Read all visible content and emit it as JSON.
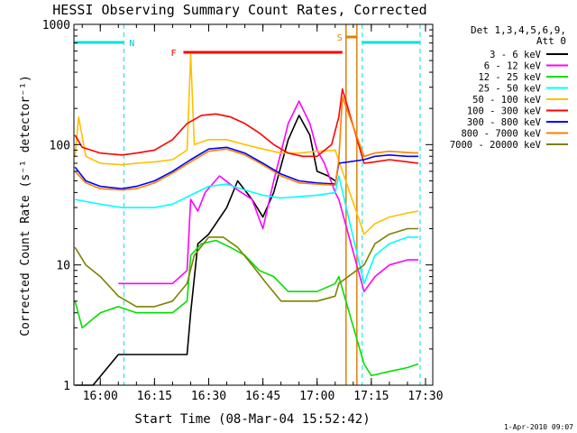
{
  "chart_data": {
    "type": "line",
    "title": "HESSI Observing Summary Count Rates, Corrected",
    "xlabel": "Start Time (08-Mar-04 15:52:42)",
    "ylabel": "Corrected Count Rate (s⁻¹ detector⁻¹)",
    "x_range": [
      "15:52:42",
      "17:32:00"
    ],
    "ylim": [
      1,
      1000
    ],
    "yscale": "log",
    "x_ticks": [
      "16:00",
      "16:15",
      "16:30",
      "16:45",
      "17:00",
      "17:15",
      "17:30"
    ],
    "y_ticks": [
      "1",
      "10",
      "100",
      "1000"
    ],
    "legend_header": [
      "Det 1,3,4,5,6,9,",
      "Att 0"
    ],
    "legend_position": "right",
    "footer": "1-Apr-2010 09:07",
    "annotations": {
      "night_label": "N",
      "flare_label": "F",
      "saa_label": "S",
      "night_intervals": [
        [
          "15:52:42",
          "16:06:30"
        ],
        [
          "17:12:30",
          "17:28:30"
        ]
      ],
      "flare_interval": [
        "16:23:00",
        "17:07:00"
      ],
      "saa_interval": [
        "17:08:00",
        "17:11:00"
      ]
    },
    "series": [
      {
        "name": "3 - 6 keV",
        "color": "#000000",
        "points": [
          [
            "15:53",
            1
          ],
          [
            "15:58",
            1
          ],
          [
            "16:05",
            1.8
          ],
          [
            "16:20",
            1.8
          ],
          [
            "16:24",
            1.8
          ],
          [
            "16:25",
            4
          ],
          [
            "16:27",
            15
          ],
          [
            "16:30",
            18
          ],
          [
            "16:35",
            30
          ],
          [
            "16:38",
            50
          ],
          [
            "16:42",
            35
          ],
          [
            "16:45",
            25
          ],
          [
            "16:48",
            40
          ],
          [
            "16:52",
            110
          ],
          [
            "16:55",
            175
          ],
          [
            "16:58",
            120
          ],
          [
            "17:00",
            60
          ],
          [
            "17:03",
            55
          ],
          [
            "17:05",
            50
          ]
        ]
      },
      {
        "name": "6 - 12 keV",
        "color": "#ff00ff",
        "points": [
          [
            "16:05",
            7
          ],
          [
            "16:10",
            7
          ],
          [
            "16:20",
            7
          ],
          [
            "16:24",
            9
          ],
          [
            "16:25",
            35
          ],
          [
            "16:27",
            28
          ],
          [
            "16:29",
            40
          ],
          [
            "16:33",
            55
          ],
          [
            "16:38",
            42
          ],
          [
            "16:42",
            35
          ],
          [
            "16:45",
            20
          ],
          [
            "16:48",
            50
          ],
          [
            "16:52",
            150
          ],
          [
            "16:55",
            230
          ],
          [
            "16:58",
            150
          ],
          [
            "17:00",
            90
          ],
          [
            "17:02",
            70
          ],
          [
            "17:05",
            40
          ],
          [
            "17:06",
            35
          ],
          [
            "17:13",
            6
          ],
          [
            "17:16",
            8
          ],
          [
            "17:20",
            10
          ],
          [
            "17:25",
            11
          ],
          [
            "17:28",
            11
          ]
        ]
      },
      {
        "name": "12 - 25 keV",
        "color": "#00e000",
        "points": [
          [
            "15:53",
            5
          ],
          [
            "15:55",
            3
          ],
          [
            "16:00",
            4
          ],
          [
            "16:05",
            4.5
          ],
          [
            "16:10",
            4
          ],
          [
            "16:15",
            4
          ],
          [
            "16:20",
            4
          ],
          [
            "16:24",
            5
          ],
          [
            "16:25",
            12
          ],
          [
            "16:28",
            15
          ],
          [
            "16:32",
            16
          ],
          [
            "16:36",
            14
          ],
          [
            "16:40",
            12
          ],
          [
            "16:44",
            9
          ],
          [
            "16:48",
            8
          ],
          [
            "16:52",
            6
          ],
          [
            "16:56",
            6
          ],
          [
            "17:00",
            6
          ],
          [
            "17:05",
            7
          ],
          [
            "17:06",
            8
          ],
          [
            "17:13",
            1.5
          ],
          [
            "17:15",
            1.2
          ],
          [
            "17:20",
            1.3
          ],
          [
            "17:25",
            1.4
          ],
          [
            "17:28",
            1.5
          ]
        ]
      },
      {
        "name": "25 - 50 keV",
        "color": "#00ffff",
        "points": [
          [
            "15:53",
            35
          ],
          [
            "16:00",
            32
          ],
          [
            "16:06",
            30
          ],
          [
            "16:10",
            30
          ],
          [
            "16:15",
            30
          ],
          [
            "16:20",
            32
          ],
          [
            "16:25",
            38
          ],
          [
            "16:30",
            45
          ],
          [
            "16:35",
            47
          ],
          [
            "16:40",
            42
          ],
          [
            "16:45",
            38
          ],
          [
            "16:50",
            36
          ],
          [
            "16:55",
            37
          ],
          [
            "17:00",
            38
          ],
          [
            "17:05",
            40
          ],
          [
            "17:06",
            55
          ],
          [
            "17:13",
            7
          ],
          [
            "17:16",
            12
          ],
          [
            "17:20",
            15
          ],
          [
            "17:25",
            17
          ],
          [
            "17:28",
            17
          ]
        ]
      },
      {
        "name": "50 - 100 keV",
        "color": "#ffc000",
        "points": [
          [
            "15:53",
            80
          ],
          [
            "15:54",
            170
          ],
          [
            "15:56",
            80
          ],
          [
            "16:00",
            70
          ],
          [
            "16:06",
            68
          ],
          [
            "16:10",
            70
          ],
          [
            "16:15",
            72
          ],
          [
            "16:20",
            75
          ],
          [
            "16:24",
            90
          ],
          [
            "16:25",
            560
          ],
          [
            "16:26",
            100
          ],
          [
            "16:30",
            110
          ],
          [
            "16:35",
            110
          ],
          [
            "16:40",
            100
          ],
          [
            "16:45",
            92
          ],
          [
            "16:50",
            85
          ],
          [
            "16:55",
            85
          ],
          [
            "17:00",
            88
          ],
          [
            "17:05",
            90
          ],
          [
            "17:13",
            18
          ],
          [
            "17:16",
            22
          ],
          [
            "17:20",
            25
          ],
          [
            "17:25",
            27
          ],
          [
            "17:28",
            28
          ]
        ]
      },
      {
        "name": "100 - 300 keV",
        "color": "#ff0000",
        "points": [
          [
            "15:53",
            120
          ],
          [
            "15:55",
            95
          ],
          [
            "16:00",
            85
          ],
          [
            "16:06",
            82
          ],
          [
            "16:10",
            85
          ],
          [
            "16:15",
            90
          ],
          [
            "16:20",
            110
          ],
          [
            "16:24",
            150
          ],
          [
            "16:28",
            175
          ],
          [
            "16:32",
            180
          ],
          [
            "16:36",
            170
          ],
          [
            "16:40",
            150
          ],
          [
            "16:44",
            125
          ],
          [
            "16:48",
            100
          ],
          [
            "16:52",
            85
          ],
          [
            "16:56",
            80
          ],
          [
            "17:00",
            80
          ],
          [
            "17:04",
            100
          ],
          [
            "17:06",
            170
          ],
          [
            "17:07",
            290
          ],
          [
            "17:13",
            70
          ],
          [
            "17:16",
            72
          ],
          [
            "17:20",
            75
          ],
          [
            "17:25",
            72
          ],
          [
            "17:28",
            70
          ]
        ]
      },
      {
        "name": "300 - 800 keV",
        "color": "#0000ff",
        "points": [
          [
            "15:53",
            65
          ],
          [
            "15:56",
            50
          ],
          [
            "16:00",
            45
          ],
          [
            "16:06",
            43
          ],
          [
            "16:10",
            45
          ],
          [
            "16:15",
            50
          ],
          [
            "16:20",
            60
          ],
          [
            "16:25",
            75
          ],
          [
            "16:30",
            92
          ],
          [
            "16:35",
            95
          ],
          [
            "16:40",
            85
          ],
          [
            "16:45",
            70
          ],
          [
            "16:50",
            57
          ],
          [
            "16:55",
            50
          ],
          [
            "17:00",
            48
          ],
          [
            "17:05",
            47
          ],
          [
            "17:06",
            70
          ],
          [
            "17:13",
            75
          ],
          [
            "17:16",
            80
          ],
          [
            "17:20",
            82
          ],
          [
            "17:25",
            80
          ],
          [
            "17:28",
            80
          ]
        ]
      },
      {
        "name": "800 - 7000 keV",
        "color": "#ff8000",
        "points": [
          [
            "15:53",
            60
          ],
          [
            "15:56",
            48
          ],
          [
            "16:00",
            43
          ],
          [
            "16:06",
            42
          ],
          [
            "16:10",
            43
          ],
          [
            "16:15",
            48
          ],
          [
            "16:20",
            58
          ],
          [
            "16:25",
            72
          ],
          [
            "16:30",
            88
          ],
          [
            "16:35",
            92
          ],
          [
            "16:40",
            82
          ],
          [
            "16:45",
            68
          ],
          [
            "16:50",
            55
          ],
          [
            "16:55",
            48
          ],
          [
            "17:00",
            47
          ],
          [
            "17:05",
            46
          ],
          [
            "17:06",
            75
          ],
          [
            "17:07",
            250
          ],
          [
            "17:13",
            80
          ],
          [
            "17:16",
            85
          ],
          [
            "17:20",
            88
          ],
          [
            "17:25",
            86
          ],
          [
            "17:28",
            85
          ]
        ]
      },
      {
        "name": "7000 - 20000 keV",
        "color": "#808000",
        "points": [
          [
            "15:53",
            14
          ],
          [
            "15:56",
            10
          ],
          [
            "16:00",
            8
          ],
          [
            "16:05",
            5.5
          ],
          [
            "16:10",
            4.5
          ],
          [
            "16:15",
            4.5
          ],
          [
            "16:20",
            5
          ],
          [
            "16:24",
            7
          ],
          [
            "16:26",
            12
          ],
          [
            "16:30",
            17
          ],
          [
            "16:34",
            17
          ],
          [
            "16:38",
            14
          ],
          [
            "16:42",
            10
          ],
          [
            "16:46",
            7
          ],
          [
            "16:50",
            5
          ],
          [
            "16:55",
            5
          ],
          [
            "17:00",
            5
          ],
          [
            "17:05",
            5.5
          ],
          [
            "17:06",
            7
          ],
          [
            "17:13",
            10
          ],
          [
            "17:16",
            15
          ],
          [
            "17:20",
            18
          ],
          [
            "17:25",
            20
          ],
          [
            "17:28",
            20
          ]
        ]
      }
    ]
  }
}
